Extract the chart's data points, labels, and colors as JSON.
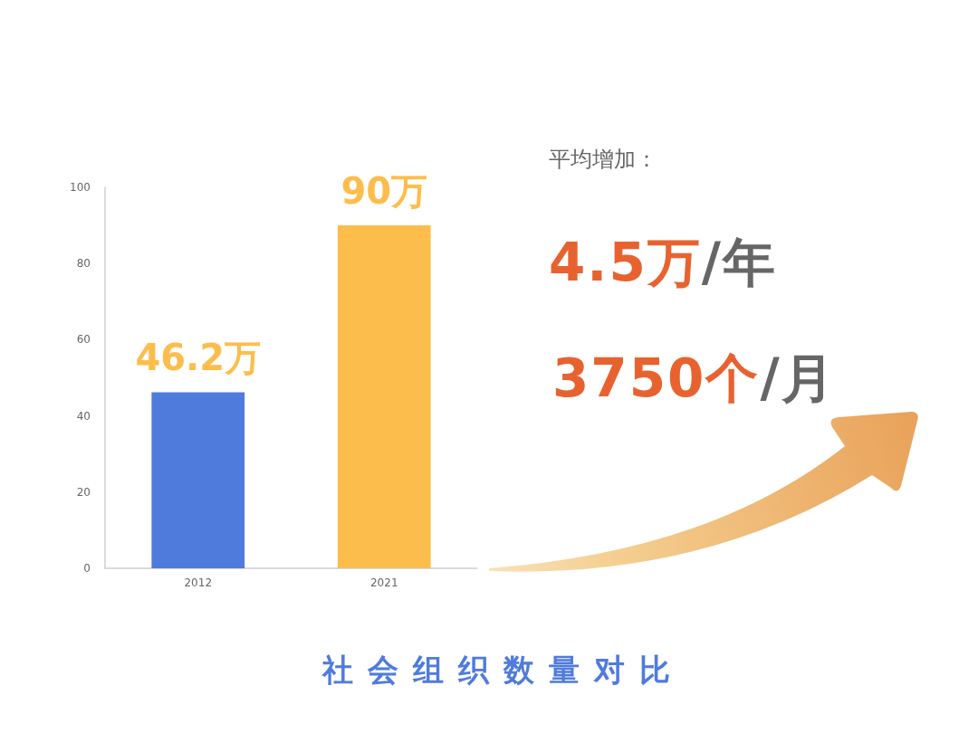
{
  "chart_data": {
    "type": "bar",
    "title": "社会组织数量对比",
    "categories": [
      "2012",
      "2021"
    ],
    "values": [
      46.2,
      90
    ],
    "colors": [
      "#4f7bdd",
      "#fdbd4c"
    ],
    "value_labels": [
      "46.2万",
      "90万"
    ],
    "ylim": [
      0,
      100
    ],
    "yticks": [
      0,
      20,
      40,
      60,
      80,
      100
    ],
    "annotations": [
      "平均增加：",
      "4.5万/年",
      "3750个/月"
    ]
  }
}
